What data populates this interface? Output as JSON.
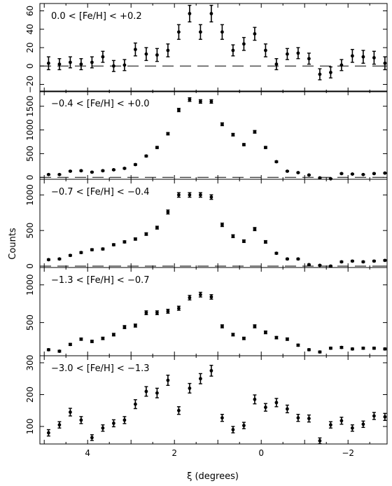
{
  "chart_data": {
    "type": "scatter",
    "x_axis": {
      "label": "ξ (degrees)",
      "range": [
        5.1,
        -2.9
      ],
      "reversed": true,
      "ticks": [
        4,
        2,
        0,
        -2
      ],
      "tick_labels": [
        "4",
        "2",
        "0",
        "−2"
      ]
    },
    "y_axis_label": "Counts",
    "x": [
      4.9,
      4.65,
      4.4,
      4.15,
      3.9,
      3.65,
      3.4,
      3.15,
      2.9,
      2.65,
      2.4,
      2.15,
      1.9,
      1.65,
      1.4,
      1.15,
      0.9,
      0.65,
      0.4,
      0.15,
      -0.1,
      -0.35,
      -0.6,
      -0.85,
      -1.1,
      -1.35,
      -1.6,
      -1.85,
      -2.1,
      -2.35,
      -2.6,
      -2.85
    ],
    "panels": [
      {
        "label": "0.0 < [Fe/H] < +0.2",
        "ylim": [
          -28,
          68
        ],
        "yticks": [
          -20,
          0,
          20,
          40,
          60
        ],
        "ytick_labels": [
          "−20",
          "0",
          "20",
          "40",
          "60"
        ],
        "zero_line": true,
        "y": [
          3,
          2,
          4,
          2,
          4,
          10,
          0,
          1,
          18,
          13,
          12,
          17,
          37,
          57,
          37,
          57,
          37,
          17,
          24,
          35,
          17,
          2,
          13,
          14,
          8,
          -9,
          -7,
          1,
          11,
          10,
          9,
          3
        ],
        "err": [
          7,
          6,
          6,
          6,
          6,
          6,
          6,
          6,
          7,
          7,
          7,
          7,
          8,
          9,
          8,
          9,
          8,
          6,
          7,
          7,
          7,
          6,
          6,
          6,
          6,
          6,
          6,
          6,
          7,
          7,
          7,
          7
        ]
      },
      {
        "label": "−0.4 < [Fe/H] < +0.0",
        "ylim": [
          -40,
          1820
        ],
        "yticks": [
          0,
          500,
          1000,
          1500
        ],
        "ytick_labels": [
          "0",
          "500",
          "1000",
          "1500"
        ],
        "zero_line": true,
        "y": [
          60,
          60,
          130,
          140,
          110,
          140,
          160,
          190,
          270,
          450,
          630,
          920,
          1420,
          1640,
          1600,
          1600,
          1120,
          900,
          690,
          960,
          630,
          330,
          130,
          100,
          50,
          -10,
          -30,
          80,
          70,
          60,
          80,
          90
        ],
        "err": [
          10,
          10,
          12,
          12,
          11,
          12,
          12,
          13,
          15,
          18,
          22,
          25,
          35,
          38,
          37,
          37,
          30,
          27,
          23,
          28,
          22,
          16,
          10,
          10,
          8,
          8,
          8,
          9,
          9,
          8,
          9,
          9
        ]
      },
      {
        "label": "−0.7 < [Fe/H] < −0.4",
        "ylim": [
          -20,
          1220
        ],
        "yticks": [
          0,
          500,
          1000
        ],
        "ytick_labels": [
          "0",
          "500",
          "1000"
        ],
        "zero_line": true,
        "y": [
          90,
          100,
          150,
          190,
          230,
          240,
          300,
          340,
          380,
          450,
          540,
          760,
          1000,
          1000,
          1000,
          970,
          580,
          420,
          350,
          520,
          340,
          180,
          100,
          100,
          20,
          10,
          0,
          60,
          70,
          60,
          70,
          80
        ],
        "err": [
          10,
          10,
          11,
          12,
          13,
          13,
          14,
          15,
          16,
          18,
          20,
          28,
          32,
          32,
          32,
          32,
          24,
          20,
          18,
          22,
          18,
          12,
          10,
          10,
          8,
          8,
          8,
          9,
          9,
          9,
          9,
          9
        ]
      },
      {
        "label": "−1.3 < [Fe/H] < −0.7",
        "ylim": [
          60,
          1230
        ],
        "yticks": [
          500,
          1000
        ],
        "ytick_labels": [
          "500",
          "1000"
        ],
        "zero_line": false,
        "y": [
          140,
          120,
          210,
          280,
          250,
          290,
          340,
          440,
          460,
          630,
          630,
          650,
          690,
          830,
          870,
          840,
          450,
          340,
          290,
          450,
          370,
          300,
          280,
          200,
          140,
          110,
          160,
          170,
          150,
          160,
          160,
          150
        ],
        "err": [
          12,
          12,
          14,
          15,
          15,
          16,
          17,
          20,
          20,
          25,
          25,
          26,
          27,
          30,
          31,
          30,
          20,
          17,
          16,
          20,
          18,
          16,
          16,
          14,
          12,
          12,
          13,
          13,
          12,
          13,
          13,
          12
        ]
      },
      {
        "label": "−3.0 < [Fe/H] < −1.3",
        "ylim": [
          45,
          322
        ],
        "yticks": [
          100,
          200,
          300
        ],
        "ytick_labels": [
          "100",
          "200",
          "300"
        ],
        "zero_line": false,
        "y": [
          80,
          105,
          145,
          120,
          65,
          95,
          110,
          120,
          170,
          210,
          205,
          245,
          150,
          220,
          250,
          275,
          127,
          90,
          103,
          185,
          160,
          175,
          155,
          127,
          125,
          55,
          105,
          118,
          95,
          107,
          133,
          130
        ],
        "err": [
          10,
          10,
          12,
          11,
          9,
          10,
          11,
          11,
          14,
          15,
          15,
          16,
          12,
          15,
          16,
          17,
          11,
          10,
          10,
          14,
          12,
          13,
          12,
          11,
          11,
          9,
          10,
          11,
          10,
          10,
          11,
          11
        ]
      }
    ]
  }
}
